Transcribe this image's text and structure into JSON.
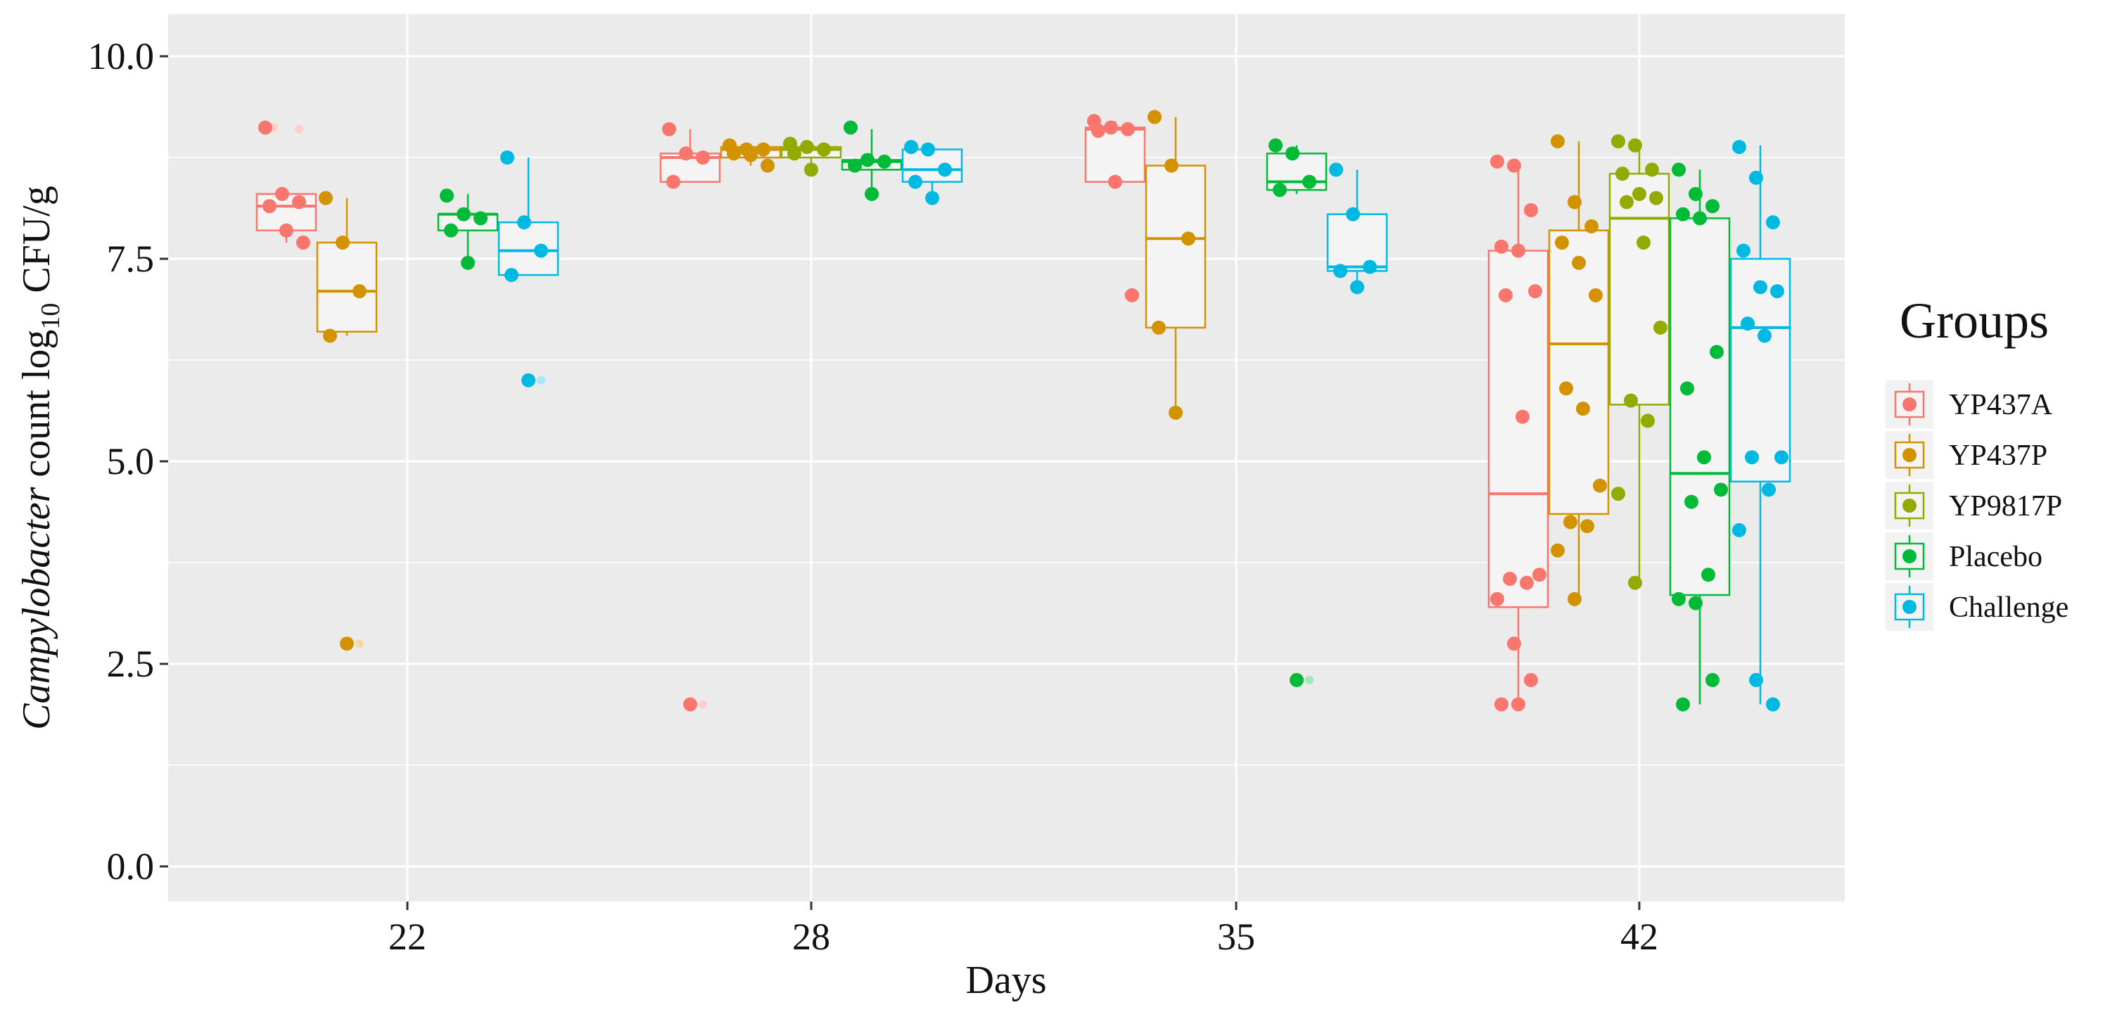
{
  "chart_data": {
    "type": "boxplot",
    "title": "",
    "xlabel": "Days",
    "ylabel": {
      "italic": "Campylobacter",
      "rest": " count log",
      "sub": "10",
      "tail": " CFU/g"
    },
    "ylim": [
      -0.4,
      10.2
    ],
    "yticks": [
      0.0,
      2.5,
      5.0,
      7.5,
      10.0
    ],
    "ytick_labels": [
      "0.0",
      "2.5",
      "5.0",
      "7.5",
      "10.0"
    ],
    "categories": [
      "22",
      "28",
      "35",
      "42"
    ],
    "legend": {
      "title": "Groups",
      "position": "right",
      "items": [
        "YP437A",
        "YP437P",
        "YP9817P",
        "Placebo",
        "Challenge"
      ]
    },
    "groups": [
      {
        "name": "YP437A",
        "color": "#F8766D"
      },
      {
        "name": "YP437P",
        "color": "#D39200"
      },
      {
        "name": "YP9817P",
        "color": "#93AA00"
      },
      {
        "name": "Placebo",
        "color": "#00BA38"
      },
      {
        "name": "Challenge",
        "color": "#00B9E3"
      }
    ],
    "series": [
      {
        "name": "YP437A",
        "boxes": [
          {
            "day": "22",
            "q1": 7.85,
            "median": 8.15,
            "q3": 8.3,
            "low": 7.7,
            "high": 8.3,
            "outliers": [
              9.1,
              9.12
            ],
            "points": [
              9.12,
              8.3,
              8.2,
              8.15,
              7.85,
              7.7
            ]
          },
          {
            "day": "28",
            "q1": 8.45,
            "median": 8.75,
            "q3": 8.8,
            "low": 8.45,
            "high": 9.1,
            "outliers": [
              2.0
            ],
            "points": [
              9.1,
              8.8,
              8.75,
              8.45,
              2.0
            ]
          },
          {
            "day": "35",
            "q1": 8.45,
            "median": 9.1,
            "q3": 9.12,
            "low": 8.45,
            "high": 9.2,
            "outliers": [
              7.05
            ],
            "points": [
              9.2,
              9.12,
              9.1,
              9.08,
              8.45,
              7.05
            ]
          },
          {
            "day": "42",
            "q1": 3.2,
            "median": 4.6,
            "q3": 7.6,
            "low": 2.0,
            "high": 8.7,
            "outliers": [],
            "points": [
              8.7,
              8.65,
              8.1,
              7.65,
              7.6,
              7.1,
              7.05,
              5.55,
              3.6,
              3.55,
              3.5,
              3.3,
              2.75,
              2.3,
              2.0,
              2.0
            ]
          }
        ]
      },
      {
        "name": "YP437P",
        "boxes": [
          {
            "day": "22",
            "q1": 6.6,
            "median": 7.1,
            "q3": 7.7,
            "low": 6.55,
            "high": 8.25,
            "outliers": [
              2.75
            ],
            "points": [
              8.25,
              7.7,
              7.1,
              6.55,
              2.75
            ]
          },
          {
            "day": "28",
            "q1": 8.75,
            "median": 8.85,
            "q3": 8.88,
            "low": 8.65,
            "high": 8.9,
            "outliers": [],
            "points": [
              8.9,
              8.85,
              8.85,
              8.8,
              8.78,
              8.65
            ]
          },
          {
            "day": "35",
            "q1": 6.65,
            "median": 7.75,
            "q3": 8.65,
            "low": 5.6,
            "high": 9.25,
            "outliers": [],
            "points": [
              9.25,
              8.65,
              7.75,
              6.65,
              5.6
            ]
          },
          {
            "day": "42",
            "q1": 4.35,
            "median": 6.45,
            "q3": 7.85,
            "low": 3.3,
            "high": 8.95,
            "outliers": [],
            "points": [
              8.95,
              8.2,
              7.9,
              7.7,
              7.45,
              7.05,
              5.9,
              5.65,
              4.7,
              4.25,
              4.2,
              3.9,
              3.3
            ]
          }
        ]
      },
      {
        "name": "YP9817P",
        "boxes": [
          {
            "day": "28",
            "q1": 8.75,
            "median": 8.85,
            "q3": 8.88,
            "low": 8.6,
            "high": 8.92,
            "outliers": [],
            "points": [
              8.92,
              8.88,
              8.85,
              8.8,
              8.6
            ]
          },
          {
            "day": "42",
            "q1": 5.7,
            "median": 8.0,
            "q3": 8.55,
            "low": 3.5,
            "high": 8.95,
            "outliers": [],
            "points": [
              8.95,
              8.9,
              8.6,
              8.55,
              8.3,
              8.25,
              8.2,
              7.7,
              6.65,
              5.75,
              5.5,
              4.6,
              3.5
            ]
          }
        ]
      },
      {
        "name": "Placebo",
        "boxes": [
          {
            "day": "22",
            "q1": 7.85,
            "median": 8.05,
            "q3": 8.05,
            "low": 7.45,
            "high": 8.3,
            "outliers": [],
            "points": [
              8.28,
              8.05,
              8.0,
              7.85,
              7.45
            ]
          },
          {
            "day": "28",
            "q1": 8.6,
            "median": 8.7,
            "q3": 8.72,
            "low": 8.3,
            "high": 9.1,
            "outliers": [],
            "points": [
              9.12,
              8.72,
              8.7,
              8.65,
              8.3
            ]
          },
          {
            "day": "35",
            "q1": 8.35,
            "median": 8.45,
            "q3": 8.8,
            "low": 8.3,
            "high": 8.9,
            "outliers": [
              2.3
            ],
            "points": [
              8.9,
              8.8,
              8.45,
              8.35,
              2.3
            ]
          },
          {
            "day": "42",
            "q1": 3.35,
            "median": 4.85,
            "q3": 8.0,
            "low": 2.0,
            "high": 8.6,
            "outliers": [],
            "points": [
              8.6,
              8.3,
              8.15,
              8.05,
              8.0,
              6.35,
              5.9,
              5.05,
              4.65,
              4.5,
              3.6,
              3.3,
              3.25,
              2.3,
              2.0
            ]
          }
        ]
      },
      {
        "name": "Challenge",
        "boxes": [
          {
            "day": "22",
            "q1": 7.3,
            "median": 7.6,
            "q3": 7.95,
            "low": 7.3,
            "high": 8.75,
            "outliers": [
              6.0
            ],
            "points": [
              8.75,
              7.95,
              7.6,
              7.3,
              6.0
            ]
          },
          {
            "day": "28",
            "q1": 8.45,
            "median": 8.6,
            "q3": 8.85,
            "low": 8.25,
            "high": 8.9,
            "outliers": [],
            "points": [
              8.88,
              8.85,
              8.6,
              8.45,
              8.25
            ]
          },
          {
            "day": "35",
            "q1": 7.35,
            "median": 7.4,
            "q3": 8.05,
            "low": 7.15,
            "high": 8.6,
            "outliers": [],
            "points": [
              8.6,
              8.05,
              7.4,
              7.35,
              7.15
            ]
          },
          {
            "day": "42",
            "q1": 4.75,
            "median": 6.65,
            "q3": 7.5,
            "low": 2.0,
            "high": 8.9,
            "outliers": [],
            "points": [
              8.88,
              8.5,
              7.95,
              7.6,
              7.15,
              7.1,
              6.7,
              6.55,
              5.05,
              5.05,
              4.65,
              4.15,
              2.3,
              2.0
            ]
          }
        ]
      }
    ]
  }
}
